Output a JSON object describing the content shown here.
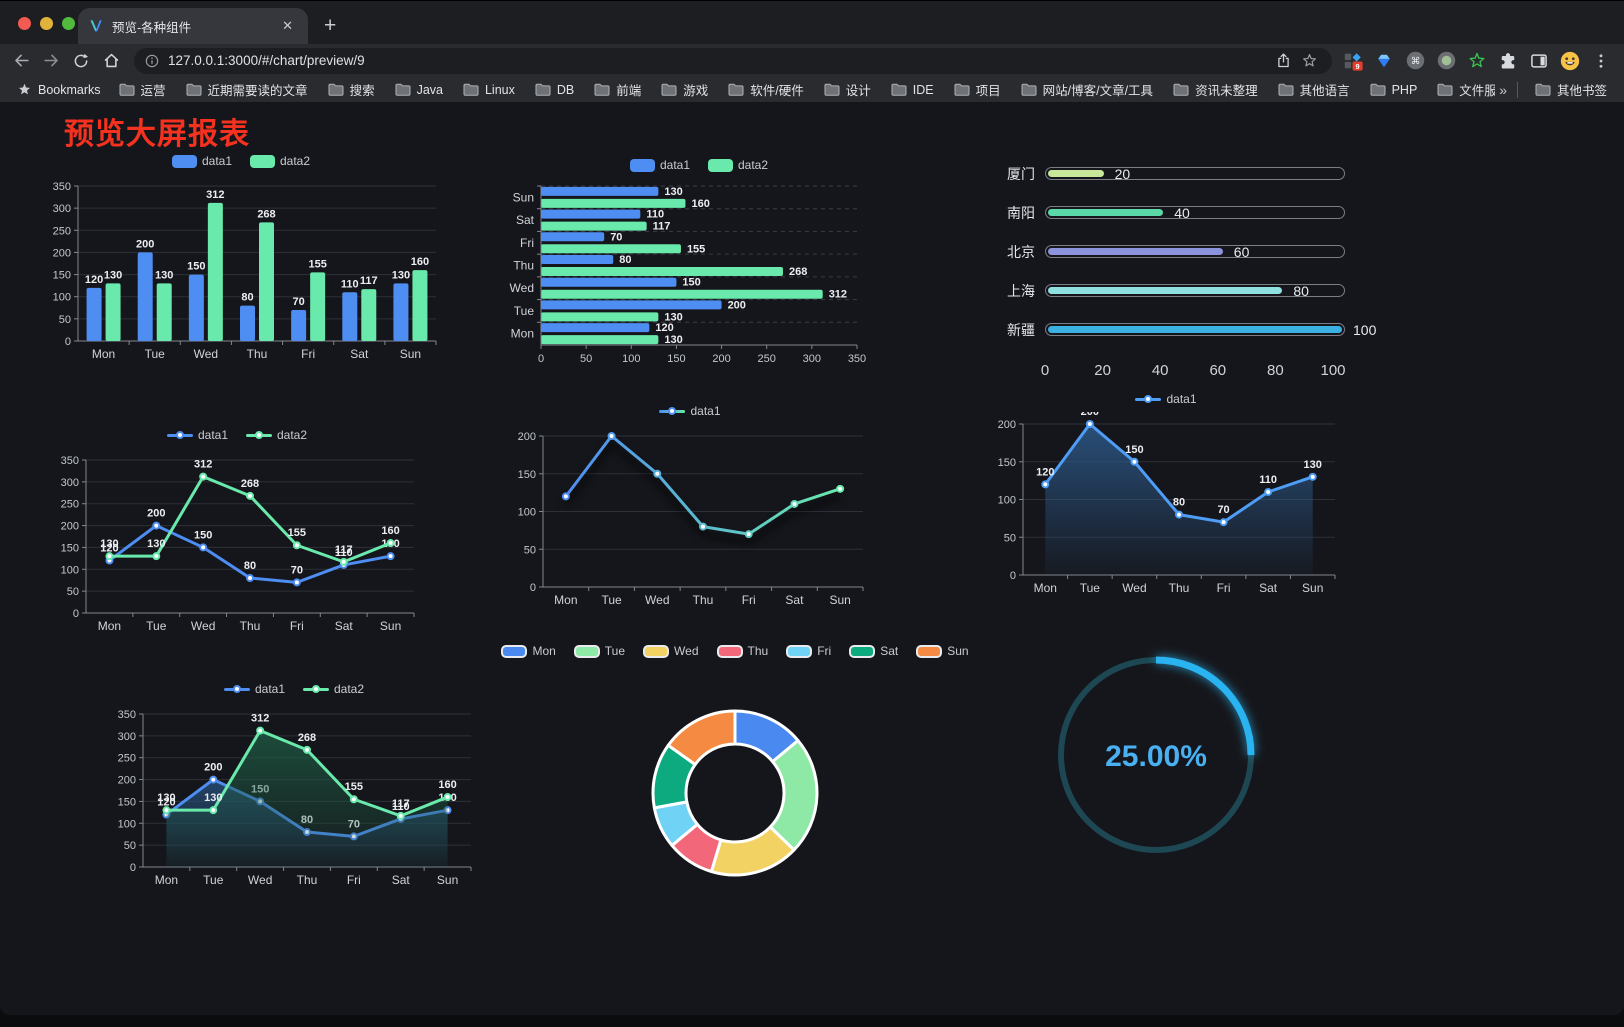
{
  "browser": {
    "tab_title": "预览-各种组件",
    "url": "127.0.0.1:3000/#/chart/preview/9",
    "bookmarks_label": "Bookmarks",
    "bookmarks": [
      "运营",
      "近期需要读的文章",
      "搜索",
      "Java",
      "Linux",
      "DB",
      "前端",
      "游戏",
      "软件/硬件",
      "设计",
      "IDE",
      "项目",
      "网站/博客/文章/工具",
      "资讯未整理",
      "其他语言",
      "PHP",
      "文件服务器"
    ],
    "overflow_chevron": "»",
    "other_bookmarks": "其他书签",
    "extension_badge": "9",
    "new_tab_plus": "+",
    "close_glyph": "✕"
  },
  "page": {
    "title": "预览大屏报表",
    "title_color": "#f5321f"
  },
  "chart_data": [
    {
      "id": "chart-bar",
      "type": "bar",
      "legend": "bar",
      "categories": [
        "Mon",
        "Tue",
        "Wed",
        "Thu",
        "Fri",
        "Sat",
        "Sun"
      ],
      "series": [
        {
          "name": "data1",
          "color": "#4e8df2",
          "values": [
            120,
            200,
            150,
            80,
            70,
            110,
            130
          ]
        },
        {
          "name": "data2",
          "color": "#69e9ab",
          "values": [
            130,
            130,
            312,
            268,
            155,
            117,
            160
          ]
        }
      ],
      "ylim": [
        0,
        350
      ],
      "yticks": [
        0,
        50,
        100,
        150,
        200,
        250,
        300,
        350
      ]
    },
    {
      "id": "chart-hbar",
      "type": "hbar",
      "legend": "bar",
      "categories": [
        "Mon",
        "Tue",
        "Wed",
        "Thu",
        "Fri",
        "Sat",
        "Sun"
      ],
      "series": [
        {
          "name": "data1",
          "color": "#4e8df2",
          "values": [
            120,
            200,
            150,
            80,
            70,
            110,
            130
          ]
        },
        {
          "name": "data2",
          "color": "#69e9ab",
          "values": [
            130,
            130,
            312,
            268,
            155,
            117,
            160
          ]
        }
      ],
      "xlim": [
        0,
        350
      ],
      "xticks": [
        0,
        50,
        100,
        150,
        200,
        250,
        300,
        350
      ]
    },
    {
      "id": "chart-progress",
      "type": "progress",
      "max": 100,
      "xticks": [
        0,
        20,
        40,
        60,
        80,
        100
      ],
      "bars": [
        {
          "label": "厦门",
          "value": 20,
          "color": "#c9e79b"
        },
        {
          "label": "南阳",
          "value": 40,
          "color": "#5bd8a8"
        },
        {
          "label": "北京",
          "value": 60,
          "color": "#8a93dc"
        },
        {
          "label": "上海",
          "value": 80,
          "color": "#8fe0de"
        },
        {
          "label": "新疆",
          "value": 100,
          "color": "#3bb1e3"
        }
      ]
    },
    {
      "id": "chart-line2",
      "type": "line",
      "legend": "line",
      "categories": [
        "Mon",
        "Tue",
        "Wed",
        "Thu",
        "Fri",
        "Sat",
        "Sun"
      ],
      "series": [
        {
          "name": "data1",
          "color": "#4e8df2",
          "values": [
            120,
            200,
            150,
            80,
            70,
            110,
            130
          ],
          "labels": true
        },
        {
          "name": "data2",
          "color": "#69e9ab",
          "values": [
            130,
            130,
            312,
            268,
            155,
            117,
            160
          ],
          "labels": true
        }
      ],
      "ylim": [
        0,
        350
      ],
      "yticks": [
        0,
        50,
        100,
        150,
        200,
        250,
        300,
        350
      ]
    },
    {
      "id": "chart-line1",
      "type": "line",
      "legend": "line",
      "categories": [
        "Mon",
        "Tue",
        "Wed",
        "Thu",
        "Fri",
        "Sat",
        "Sun"
      ],
      "series": [
        {
          "name": "data1",
          "color": "#4e8df2",
          "color2": "#69e9ab",
          "shadow": true,
          "values": [
            120,
            200,
            150,
            80,
            70,
            110,
            130
          ],
          "labels": false
        }
      ],
      "ylim": [
        0,
        200
      ],
      "yticks": [
        0,
        50,
        100,
        150,
        200
      ]
    },
    {
      "id": "chart-area1",
      "type": "line",
      "legend": "line",
      "categories": [
        "Mon",
        "Tue",
        "Wed",
        "Thu",
        "Fri",
        "Sat",
        "Sun"
      ],
      "series": [
        {
          "name": "data1",
          "color": "#4e9df6",
          "area": "#2e5d91",
          "values": [
            120,
            200,
            150,
            80,
            70,
            110,
            130
          ],
          "labels": true
        }
      ],
      "ylim": [
        0,
        200
      ],
      "yticks": [
        0,
        50,
        100,
        150,
        200
      ]
    },
    {
      "id": "chart-area2",
      "type": "line",
      "legend": "line",
      "categories": [
        "Mon",
        "Tue",
        "Wed",
        "Thu",
        "Fri",
        "Sat",
        "Sun"
      ],
      "series": [
        {
          "name": "data1",
          "color": "#4e8df2",
          "area": "#27517e",
          "values": [
            120,
            200,
            150,
            80,
            70,
            110,
            130
          ],
          "labels": true
        },
        {
          "name": "data2",
          "color": "#69e9ab",
          "area": "#1e5a43",
          "values": [
            130,
            130,
            312,
            268,
            155,
            117,
            160
          ],
          "labels": true
        }
      ],
      "ylim": [
        0,
        350
      ],
      "yticks": [
        0,
        50,
        100,
        150,
        200,
        250,
        300,
        350
      ]
    },
    {
      "id": "chart-pie",
      "type": "pie",
      "legend": "pie",
      "inner_radius": 49,
      "outer_radius": 82,
      "items": [
        {
          "label": "Mon",
          "value": 120,
          "color": "#4a89f0"
        },
        {
          "label": "Tue",
          "value": 200,
          "color": "#8de9a5"
        },
        {
          "label": "Wed",
          "value": 150,
          "color": "#f3d264"
        },
        {
          "label": "Thu",
          "value": 80,
          "color": "#f3677a"
        },
        {
          "label": "Fri",
          "value": 70,
          "color": "#70d3f5"
        },
        {
          "label": "Sat",
          "value": 110,
          "color": "#0caa7e"
        },
        {
          "label": "Sun",
          "value": 130,
          "color": "#f58b42"
        }
      ]
    },
    {
      "id": "chart-gauge",
      "type": "gauge",
      "value": 25,
      "label": "25.00%",
      "color": "#29b3f0",
      "track_color": "#1d4752",
      "text_color": "#49b0f1"
    }
  ],
  "chart_style": {
    "grid_color": "#2d3138",
    "axis_color": "#82878f",
    "tick_text_color": "#c3c8cf",
    "category_text_color": "#cfd3d9",
    "value_label_color": "#eceef1"
  }
}
